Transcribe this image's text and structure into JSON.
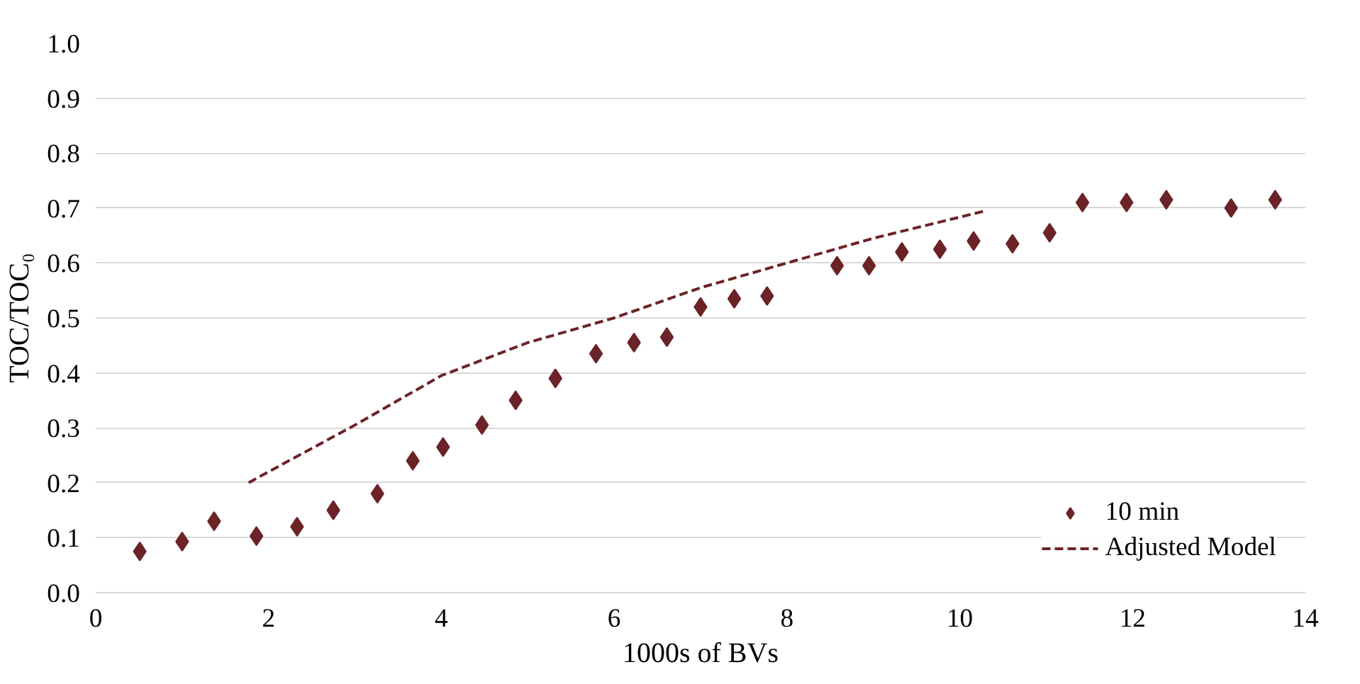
{
  "chart_data": {
    "type": "scatter",
    "xlabel": "1000s of BVs",
    "ylabel": "TOC/TOC₀",
    "xlim": [
      0,
      14
    ],
    "ylim": [
      0,
      1.0
    ],
    "xticks": [
      0,
      2,
      4,
      6,
      8,
      10,
      12,
      14
    ],
    "yticks": [
      {
        "value": 0,
        "label": "0.0"
      },
      {
        "value": 0.1,
        "label": "0.1"
      },
      {
        "value": 0.2,
        "label": "0.2"
      },
      {
        "value": 0.3,
        "label": "0.3"
      },
      {
        "value": 0.4,
        "label": "0.4"
      },
      {
        "value": 0.5,
        "label": "0.5"
      },
      {
        "value": 0.6,
        "label": "0.6"
      },
      {
        "value": 0.7,
        "label": "0.7"
      },
      {
        "value": 0.8,
        "label": "0.8"
      },
      {
        "value": 0.9,
        "label": "0.9"
      },
      {
        "value": 1.0,
        "label": "1.0"
      }
    ],
    "grid": "y",
    "legend": "bottom right",
    "series": [
      {
        "name": "10 min",
        "marker": "diamond",
        "color": "#6b2327",
        "x": [
          0.51,
          1.0,
          1.37,
          1.86,
          2.33,
          2.75,
          3.26,
          3.67,
          4.02,
          4.47,
          4.86,
          5.32,
          5.79,
          6.23,
          6.61,
          7.0,
          7.39,
          7.77,
          8.58,
          8.95,
          9.33,
          9.77,
          10.16,
          10.61,
          11.04,
          11.42,
          11.93,
          12.39,
          13.14,
          13.65
        ],
        "values": [
          0.075,
          0.093,
          0.13,
          0.103,
          0.12,
          0.15,
          0.18,
          0.24,
          0.265,
          0.305,
          0.35,
          0.39,
          0.435,
          0.455,
          0.465,
          0.52,
          0.535,
          0.54,
          0.595,
          0.595,
          0.62,
          0.625,
          0.64,
          0.635,
          0.655,
          0.71,
          0.71,
          0.715,
          0.7,
          0.715
        ]
      },
      {
        "name": "Adjusted Model",
        "type": "line",
        "line_style": "dashed",
        "color": "#6b2327",
        "x": [
          1.77,
          2,
          3,
          4,
          5,
          6,
          7,
          8,
          9,
          10.3
        ],
        "values": [
          0.2,
          0.22,
          0.305,
          0.395,
          0.455,
          0.5,
          0.555,
          0.6,
          0.645,
          0.695
        ]
      }
    ]
  }
}
